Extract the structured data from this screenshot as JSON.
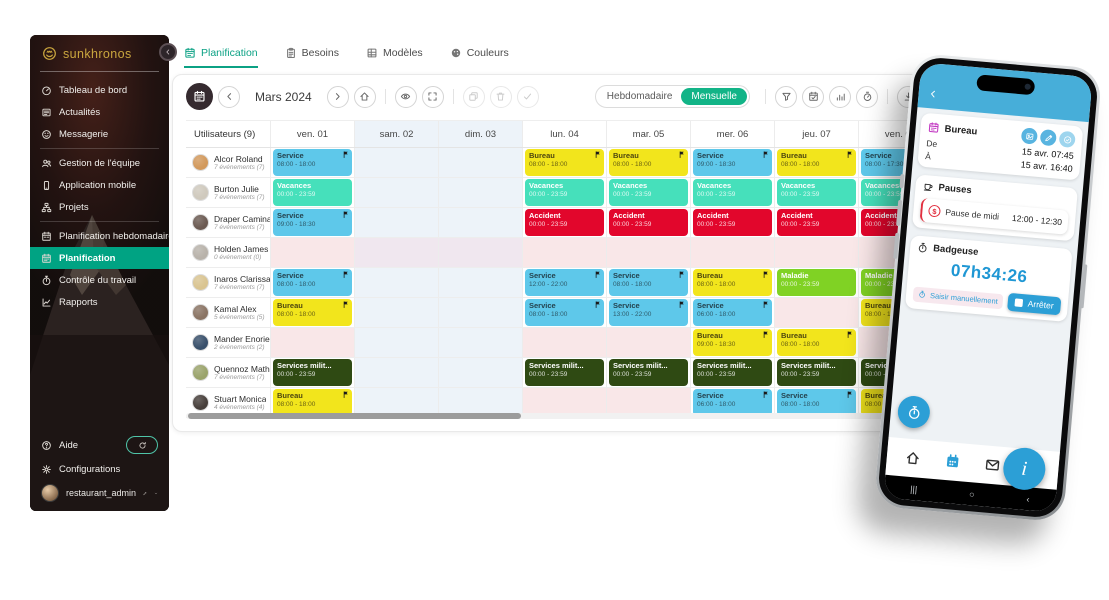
{
  "sidebar": {
    "logo_text": "sunkhronos",
    "items": [
      {
        "icon": "gauge-icon",
        "label": "Tableau de bord"
      },
      {
        "icon": "news-icon",
        "label": "Actualités"
      },
      {
        "icon": "chat-icon",
        "label": "Messagerie",
        "divider_after": true
      },
      {
        "icon": "team-icon",
        "label": "Gestion de l'équipe"
      },
      {
        "icon": "mobile-icon",
        "label": "Application mobile"
      },
      {
        "icon": "projects-icon",
        "label": "Projets",
        "divider_after": true
      },
      {
        "icon": "calendar-week-icon",
        "label": "Planification hebdomadaire"
      },
      {
        "icon": "calendar-icon",
        "label": "Planification",
        "active": true
      },
      {
        "icon": "stopwatch-icon",
        "label": "Contrôle du travail"
      },
      {
        "icon": "chart-line-icon",
        "label": "Rapports"
      }
    ],
    "footer": {
      "help_label": "Aide",
      "config_label": "Configurations",
      "username": "restaurant_admin"
    }
  },
  "tabs": [
    {
      "icon": "calendar-icon",
      "label": "Planification",
      "active": true
    },
    {
      "icon": "clipboard-icon",
      "label": "Besoins"
    },
    {
      "icon": "grid-icon",
      "label": "Modèles"
    },
    {
      "icon": "palette-icon",
      "label": "Couleurs"
    }
  ],
  "toolbar": {
    "period": "Mars 2024",
    "view_weekly": "Hebdomadaire",
    "view_monthly": "Mensuelle",
    "left_buttons": [
      {
        "icon": "calendar-icon",
        "name": "calendar-view-button",
        "variant": "dark"
      },
      {
        "icon": "chevron-left-icon",
        "name": "prev-period-button"
      },
      {
        "type": "period"
      },
      {
        "icon": "chevron-right-icon",
        "name": "next-period-button"
      },
      {
        "icon": "home-icon",
        "name": "today-button"
      },
      {
        "type": "sep"
      },
      {
        "icon": "eye-icon",
        "name": "visibility-button"
      },
      {
        "icon": "expand-icon",
        "name": "fullscreen-button"
      },
      {
        "type": "sep"
      },
      {
        "icon": "copy-icon",
        "name": "copy-button",
        "disabled": true
      },
      {
        "icon": "trash-icon",
        "name": "delete-button",
        "disabled": true
      },
      {
        "icon": "check-icon",
        "name": "validate-button",
        "disabled": true
      }
    ],
    "right_buttons": [
      {
        "icon": "funnel-icon",
        "name": "filter-button"
      },
      {
        "icon": "calendar-check-icon",
        "name": "availability-button"
      },
      {
        "icon": "stats-icon",
        "name": "stats-button"
      },
      {
        "icon": "timer-icon",
        "name": "time-tracking-button"
      },
      {
        "type": "sep"
      },
      {
        "icon": "download-icon",
        "name": "export-button"
      }
    ]
  },
  "table": {
    "users_header": "Utilisateurs (9)",
    "days": [
      "ven. 01",
      "sam. 02",
      "dim. 03",
      "lun. 04",
      "mar. 05",
      "mer. 06",
      "jeu. 07",
      "ven. 08"
    ],
    "weekend_indexes": [
      1,
      2
    ],
    "event_types": {
      "service": {
        "label": "Service",
        "bg": "#5ec8ea",
        "fg": "#24434e"
      },
      "bureau": {
        "label": "Bureau",
        "bg": "#f2e51c",
        "fg": "#4c4510"
      },
      "vacances": {
        "label": "Vacances",
        "bg": "#46e0bb",
        "fg": "#ffffff"
      },
      "accident": {
        "label": "Accident",
        "bg": "#e2062c",
        "fg": "#ffffff"
      },
      "maladie": {
        "label": "Maladie",
        "bg": "#80d224",
        "fg": "#ffffff"
      },
      "milit": {
        "label": "Services milit...",
        "bg": "#2f4a13",
        "fg": "#ffffff"
      }
    },
    "rows": [
      {
        "name": "Alcor Roland",
        "meta": "7 événements (7)",
        "events": [
          {
            "type": "service",
            "time": "08:00 - 18:00",
            "flag": true
          },
          null,
          null,
          {
            "type": "bureau",
            "time": "08:00 - 18:00",
            "flag": true
          },
          {
            "type": "bureau",
            "time": "08:00 - 18:00",
            "flag": true
          },
          {
            "type": "service",
            "time": "09:00 - 18:30",
            "flag": true
          },
          {
            "type": "bureau",
            "time": "08:00 - 18:00",
            "flag": true
          },
          {
            "type": "service",
            "time": "08:00 - 17:30",
            "flag": true
          }
        ]
      },
      {
        "name": "Burton Julie",
        "meta": "7 événements (7)",
        "events": [
          {
            "type": "vacances",
            "time": "00:00 - 23:59"
          },
          null,
          null,
          {
            "type": "vacances",
            "time": "00:00 - 23:59"
          },
          {
            "type": "vacances",
            "time": "00:00 - 23:59"
          },
          {
            "type": "vacances",
            "time": "00:00 - 23:59"
          },
          {
            "type": "vacances",
            "time": "00:00 - 23:59"
          },
          {
            "type": "vacances",
            "time": "00:00 - 23:59"
          }
        ]
      },
      {
        "name": "Draper Camina",
        "meta": "7 événements (7)",
        "events": [
          {
            "type": "service",
            "time": "09:00 - 18:30",
            "flag": true
          },
          null,
          null,
          {
            "type": "accident",
            "time": "00:00 - 23:59"
          },
          {
            "type": "accident",
            "time": "00:00 - 23:59"
          },
          {
            "type": "accident",
            "time": "00:00 - 23:59"
          },
          {
            "type": "accident",
            "time": "00:00 - 23:59"
          },
          {
            "type": "accident",
            "time": "00:00 - 23:59"
          }
        ]
      },
      {
        "name": "Holden James",
        "meta": "0 événement (0)",
        "tint": true,
        "events": [
          null,
          null,
          null,
          null,
          null,
          null,
          null,
          null
        ]
      },
      {
        "name": "Inaros Clarissa",
        "meta": "7 événements (7)",
        "events": [
          {
            "type": "service",
            "time": "08:00 - 18:00",
            "flag": true
          },
          null,
          null,
          {
            "type": "service",
            "time": "12:00 - 22:00",
            "flag": true
          },
          {
            "type": "service",
            "time": "08:00 - 18:00",
            "flag": true
          },
          {
            "type": "bureau",
            "time": "08:00 - 18:00",
            "flag": true
          },
          {
            "type": "maladie",
            "time": "00:00 - 23:59"
          },
          {
            "type": "maladie",
            "time": "00:00 - 23:59"
          }
        ]
      },
      {
        "name": "Kamal Alex",
        "meta": "5 événements (5)",
        "events": [
          {
            "type": "bureau",
            "time": "08:00 - 18:00",
            "flag": true
          },
          null,
          null,
          {
            "type": "service",
            "time": "08:00 - 18:00",
            "flag": true
          },
          {
            "type": "service",
            "time": "13:00 - 22:00",
            "flag": true
          },
          {
            "type": "service",
            "time": "06:00 - 18:00",
            "flag": true
          },
          null,
          {
            "type": "bureau",
            "time": "08:00 - 17:00",
            "flag": true
          }
        ]
      },
      {
        "name": "Mander Enoriel",
        "meta": "2 événements (2)",
        "events": [
          null,
          null,
          null,
          null,
          null,
          {
            "type": "bureau",
            "time": "09:00 - 18:30",
            "flag": true
          },
          {
            "type": "bureau",
            "time": "08:00 - 18:00",
            "flag": true
          },
          null
        ]
      },
      {
        "name": "Quennoz Mathias",
        "meta": "7 événements (7)",
        "events": [
          {
            "type": "milit",
            "time": "00:00 - 23:59"
          },
          null,
          null,
          {
            "type": "milit",
            "time": "00:00 - 23:59"
          },
          {
            "type": "milit",
            "time": "00:00 - 23:59"
          },
          {
            "type": "milit",
            "time": "00:00 - 23:59"
          },
          {
            "type": "milit",
            "time": "00:00 - 23:59"
          },
          {
            "type": "milit",
            "time": "00:00 - 23:59"
          }
        ]
      },
      {
        "name": "Stuart Monica",
        "meta": "4 événements (4)",
        "events": [
          {
            "type": "bureau",
            "time": "08:00 - 18:00",
            "flag": true
          },
          null,
          null,
          null,
          null,
          {
            "type": "service",
            "time": "06:00 - 18:00",
            "flag": true
          },
          {
            "type": "service",
            "time": "08:00 - 18:00",
            "flag": true
          },
          {
            "type": "bureau",
            "time": "08:00 - 18:00"
          }
        ]
      }
    ]
  },
  "phone": {
    "event_card": {
      "title": "Bureau",
      "actions": [
        "image-icon",
        "pencil-icon",
        "check-circle-icon"
      ],
      "from_label": "De",
      "from_value": "15 avr. 07:45",
      "to_label": "À",
      "to_value": "15 avr. 16:40"
    },
    "pauses_card": {
      "title": "Pauses",
      "item": {
        "icon_glyph": "$",
        "label": "Pause de midi",
        "time": "12:00 - 12:30"
      }
    },
    "badge_card": {
      "title": "Badgeuse",
      "timer": "07h34:26",
      "manual_button": "Saisir manuellement",
      "stop_button": "Arrêter"
    },
    "nav_icons": [
      "home-icon",
      "calendar-filled-icon",
      "mail-icon",
      "doc-icon"
    ],
    "nav_active_index": 1,
    "gesture": [
      "|||",
      "○",
      "‹"
    ]
  },
  "colors": {
    "accent": "#00a383",
    "toggle_active": "#12b487",
    "phone_blue": "#2c9fd6",
    "phone_header": "#47aed9",
    "weekend_bg": "#edf3f9",
    "empty_bg": "#f9e7e8"
  }
}
